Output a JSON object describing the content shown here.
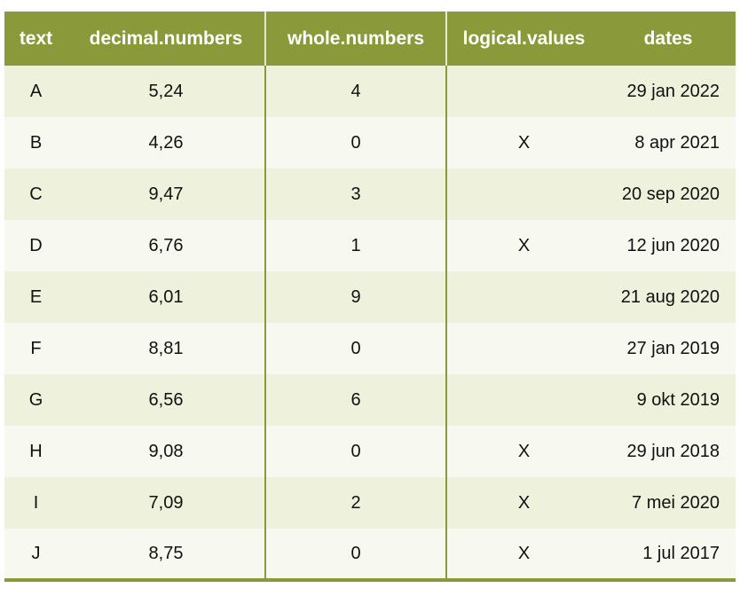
{
  "columns": [
    "text",
    "decimal.numbers",
    "whole.numbers",
    "logical.values",
    "dates"
  ],
  "rows": [
    {
      "text": "A",
      "decimal": "5,24",
      "whole": "4",
      "logical": "",
      "date": "29 jan 2022"
    },
    {
      "text": "B",
      "decimal": "4,26",
      "whole": "0",
      "logical": "X",
      "date": "8 apr 2021"
    },
    {
      "text": "C",
      "decimal": "9,47",
      "whole": "3",
      "logical": "",
      "date": "20 sep 2020"
    },
    {
      "text": "D",
      "decimal": "6,76",
      "whole": "1",
      "logical": "X",
      "date": "12 jun 2020"
    },
    {
      "text": "E",
      "decimal": "6,01",
      "whole": "9",
      "logical": "",
      "date": "21 aug 2020"
    },
    {
      "text": "F",
      "decimal": "8,81",
      "whole": "0",
      "logical": "",
      "date": "27 jan 2019"
    },
    {
      "text": "G",
      "decimal": "6,56",
      "whole": "6",
      "logical": "",
      "date": "9 okt 2019"
    },
    {
      "text": "H",
      "decimal": "9,08",
      "whole": "0",
      "logical": "X",
      "date": "29 jun 2018"
    },
    {
      "text": "I",
      "decimal": "7,09",
      "whole": "2",
      "logical": "X",
      "date": "7 mei 2020"
    },
    {
      "text": "J",
      "decimal": "8,75",
      "whole": "0",
      "logical": "X",
      "date": "1 jul 2017"
    }
  ],
  "colors": {
    "header_bg": "#8a9a3a",
    "row_odd": "#eef1dc",
    "row_even": "#f7f8f0"
  }
}
